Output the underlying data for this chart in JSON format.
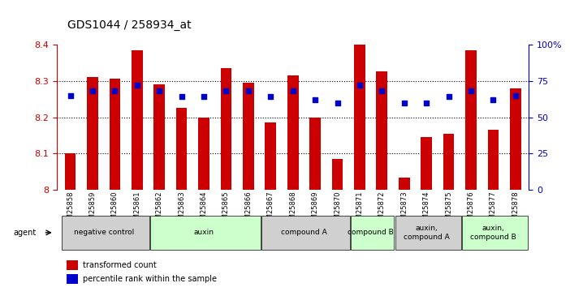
{
  "title": "GDS1044 / 258934_at",
  "samples": [
    "GSM25858",
    "GSM25859",
    "GSM25860",
    "GSM25861",
    "GSM25862",
    "GSM25863",
    "GSM25864",
    "GSM25865",
    "GSM25866",
    "GSM25867",
    "GSM25868",
    "GSM25869",
    "GSM25870",
    "GSM25871",
    "GSM25872",
    "GSM25873",
    "GSM25874",
    "GSM25875",
    "GSM25876",
    "GSM25877",
    "GSM25878"
  ],
  "bar_values": [
    8.1,
    8.31,
    8.305,
    8.385,
    8.29,
    8.225,
    8.198,
    8.335,
    8.295,
    8.185,
    8.315,
    8.2,
    8.085,
    8.4,
    8.325,
    8.035,
    8.145,
    8.155,
    8.385,
    8.165,
    8.28
  ],
  "dot_values": [
    65,
    68,
    68,
    72,
    68,
    64,
    64,
    68,
    68,
    64,
    68,
    62,
    60,
    72,
    68,
    60,
    60,
    64,
    68,
    62,
    65
  ],
  "ymin": 8.0,
  "ymax": 8.4,
  "bar_color": "#CC0000",
  "dot_color": "#0000CC",
  "grid_color": "#000000",
  "title_color": "#000000",
  "left_axis_color": "#CC0000",
  "right_axis_color": "#0000CC",
  "groups": [
    {
      "label": "negative control",
      "start": 0,
      "end": 4,
      "color": "#d0d0d0"
    },
    {
      "label": "auxin",
      "start": 4,
      "end": 9,
      "color": "#ccffcc"
    },
    {
      "label": "compound A",
      "start": 9,
      "end": 13,
      "color": "#d0d0d0"
    },
    {
      "label": "compound B",
      "start": 13,
      "end": 15,
      "color": "#ccffcc"
    },
    {
      "label": "auxin,\ncompound A",
      "start": 15,
      "end": 18,
      "color": "#d0d0d0"
    },
    {
      "label": "auxin,\ncompound B",
      "start": 18,
      "end": 21,
      "color": "#ccffcc"
    }
  ],
  "legend_items": [
    {
      "label": "transformed count",
      "color": "#CC0000",
      "marker": "s"
    },
    {
      "label": "percentile rank within the sample",
      "color": "#0000CC",
      "marker": "s"
    }
  ]
}
